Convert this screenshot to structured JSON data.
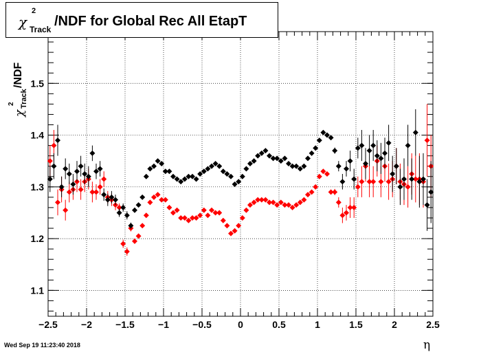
{
  "chart_data": {
    "type": "scatter",
    "title": {
      "chi": "χ",
      "sup": "2",
      "sub": "Track",
      "text": "/NDF for Global Rec All EtapT"
    },
    "ylabel": {
      "chi": "χ",
      "sup": "2",
      "sub": "Track",
      "text": "/NDF"
    },
    "xlabel": "η",
    "xlim": [
      -2.5,
      2.5
    ],
    "ylim": [
      1.05,
      1.6
    ],
    "xticks": [
      -2.5,
      -2,
      -1.5,
      -1,
      -0.5,
      0,
      0.5,
      1,
      1.5,
      2,
      2.5
    ],
    "xtick_labels": [
      "−2.5",
      "−2",
      "−1.5",
      "−1",
      "−0.5",
      "0",
      "0.5",
      "1",
      "1.5",
      "2",
      "2.5"
    ],
    "yticks": [
      1.1,
      1.2,
      1.3,
      1.4,
      1.5
    ],
    "ytick_labels": [
      "1.1",
      "1.2",
      "1.3",
      "1.4",
      "1.5"
    ],
    "grid": true,
    "series": [
      {
        "color": "#000000",
        "x": [
          -2.475,
          -2.425,
          -2.375,
          -2.325,
          -2.275,
          -2.225,
          -2.175,
          -2.125,
          -2.075,
          -2.025,
          -1.975,
          -1.925,
          -1.875,
          -1.825,
          -1.775,
          -1.725,
          -1.675,
          -1.625,
          -1.575,
          -1.525,
          -1.475,
          -1.425,
          -1.375,
          -1.325,
          -1.275,
          -1.225,
          -1.175,
          -1.125,
          -1.075,
          -1.025,
          -0.975,
          -0.925,
          -0.875,
          -0.825,
          -0.775,
          -0.725,
          -0.675,
          -0.625,
          -0.575,
          -0.525,
          -0.475,
          -0.425,
          -0.375,
          -0.325,
          -0.275,
          -0.225,
          -0.175,
          -0.125,
          -0.075,
          -0.025,
          0.025,
          0.075,
          0.125,
          0.175,
          0.225,
          0.275,
          0.325,
          0.375,
          0.425,
          0.475,
          0.525,
          0.575,
          0.625,
          0.675,
          0.725,
          0.775,
          0.825,
          0.875,
          0.925,
          0.975,
          1.025,
          1.075,
          1.125,
          1.175,
          1.225,
          1.275,
          1.325,
          1.375,
          1.425,
          1.475,
          1.525,
          1.575,
          1.625,
          1.675,
          1.725,
          1.775,
          1.825,
          1.875,
          1.925,
          1.975,
          2.025,
          2.075,
          2.125,
          2.175,
          2.225,
          2.275,
          2.325,
          2.375,
          2.425,
          2.475
        ],
        "y": [
          1.315,
          1.34,
          1.39,
          1.3,
          1.335,
          1.325,
          1.305,
          1.33,
          1.34,
          1.325,
          1.32,
          1.365,
          1.33,
          1.335,
          1.285,
          1.275,
          1.28,
          1.275,
          1.25,
          1.26,
          1.245,
          1.225,
          1.255,
          1.265,
          1.28,
          1.32,
          1.335,
          1.34,
          1.35,
          1.345,
          1.33,
          1.33,
          1.32,
          1.315,
          1.31,
          1.315,
          1.32,
          1.32,
          1.315,
          1.325,
          1.33,
          1.335,
          1.34,
          1.345,
          1.34,
          1.33,
          1.325,
          1.32,
          1.305,
          1.31,
          1.32,
          1.335,
          1.345,
          1.35,
          1.36,
          1.365,
          1.37,
          1.36,
          1.355,
          1.355,
          1.35,
          1.355,
          1.345,
          1.34,
          1.34,
          1.335,
          1.34,
          1.355,
          1.365,
          1.375,
          1.39,
          1.405,
          1.4,
          1.395,
          1.37,
          1.34,
          1.31,
          1.335,
          1.35,
          1.315,
          1.375,
          1.38,
          1.345,
          1.37,
          1.38,
          1.36,
          1.355,
          1.365,
          1.385,
          1.325,
          1.34,
          1.3,
          1.315,
          1.38,
          1.315,
          1.405,
          1.31,
          1.315,
          1.265,
          1.29
        ],
        "err": [
          0.025,
          0.025,
          0.03,
          0.02,
          0.02,
          0.02,
          0.02,
          0.02,
          0.02,
          0.02,
          0.02,
          0.015,
          0.015,
          0.015,
          0.012,
          0.012,
          0.012,
          0.01,
          0.008,
          0.008,
          0.008,
          0.006,
          0.005,
          0.004,
          0.003,
          0.003,
          0.003,
          0.003,
          0.003,
          0.003,
          0.003,
          0.003,
          0.003,
          0.003,
          0.003,
          0.003,
          0.003,
          0.003,
          0.003,
          0.003,
          0.003,
          0.003,
          0.003,
          0.003,
          0.003,
          0.003,
          0.003,
          0.003,
          0.003,
          0.003,
          0.003,
          0.003,
          0.003,
          0.003,
          0.003,
          0.003,
          0.003,
          0.003,
          0.003,
          0.003,
          0.003,
          0.003,
          0.003,
          0.003,
          0.003,
          0.003,
          0.003,
          0.003,
          0.003,
          0.003,
          0.003,
          0.003,
          0.003,
          0.003,
          0.006,
          0.01,
          0.015,
          0.015,
          0.02,
          0.02,
          0.02,
          0.03,
          0.03,
          0.03,
          0.03,
          0.03,
          0.03,
          0.03,
          0.035,
          0.035,
          0.035,
          0.035,
          0.04,
          0.04,
          0.04,
          0.045,
          0.05,
          0.05,
          0.05,
          0.06
        ]
      },
      {
        "color": "#ff0000",
        "x": [
          -2.475,
          -2.425,
          -2.375,
          -2.325,
          -2.275,
          -2.225,
          -2.175,
          -2.125,
          -2.075,
          -2.025,
          -1.975,
          -1.925,
          -1.875,
          -1.825,
          -1.775,
          -1.725,
          -1.675,
          -1.625,
          -1.575,
          -1.525,
          -1.475,
          -1.425,
          -1.375,
          -1.325,
          -1.275,
          -1.225,
          -1.175,
          -1.125,
          -1.075,
          -1.025,
          -0.975,
          -0.925,
          -0.875,
          -0.825,
          -0.775,
          -0.725,
          -0.675,
          -0.625,
          -0.575,
          -0.525,
          -0.475,
          -0.425,
          -0.375,
          -0.325,
          -0.275,
          -0.225,
          -0.175,
          -0.125,
          -0.075,
          -0.025,
          0.025,
          0.075,
          0.125,
          0.175,
          0.225,
          0.275,
          0.325,
          0.375,
          0.425,
          0.475,
          0.525,
          0.575,
          0.625,
          0.675,
          0.725,
          0.775,
          0.825,
          0.875,
          0.925,
          0.975,
          1.025,
          1.075,
          1.125,
          1.175,
          1.225,
          1.275,
          1.325,
          1.375,
          1.425,
          1.475,
          1.525,
          1.575,
          1.625,
          1.675,
          1.725,
          1.775,
          1.825,
          1.875,
          1.925,
          1.975,
          2.025,
          2.075,
          2.125,
          2.175,
          2.225,
          2.275,
          2.325,
          2.375,
          2.425,
          2.475
        ],
        "y": [
          1.35,
          1.38,
          1.27,
          1.295,
          1.255,
          1.29,
          1.295,
          1.31,
          1.295,
          1.31,
          1.315,
          1.29,
          1.29,
          1.3,
          1.315,
          1.28,
          1.275,
          1.265,
          1.26,
          1.19,
          1.175,
          1.22,
          1.195,
          1.205,
          1.225,
          1.245,
          1.27,
          1.28,
          1.285,
          1.275,
          1.275,
          1.26,
          1.25,
          1.255,
          1.24,
          1.24,
          1.235,
          1.24,
          1.24,
          1.245,
          1.255,
          1.245,
          1.255,
          1.25,
          1.25,
          1.235,
          1.225,
          1.21,
          1.215,
          1.225,
          1.24,
          1.255,
          1.265,
          1.27,
          1.275,
          1.275,
          1.275,
          1.27,
          1.27,
          1.265,
          1.27,
          1.265,
          1.265,
          1.26,
          1.265,
          1.27,
          1.275,
          1.285,
          1.29,
          1.3,
          1.32,
          1.33,
          1.325,
          1.29,
          1.29,
          1.27,
          1.245,
          1.25,
          1.26,
          1.26,
          1.3,
          1.31,
          1.34,
          1.31,
          1.31,
          1.35,
          1.31,
          1.34,
          1.31,
          1.315,
          1.34,
          1.31,
          1.305,
          1.3,
          1.325,
          1.315,
          1.315,
          1.31,
          1.39,
          1.34
        ],
        "err": [
          0.03,
          0.03,
          0.025,
          0.025,
          0.02,
          0.02,
          0.02,
          0.02,
          0.02,
          0.02,
          0.02,
          0.02,
          0.015,
          0.015,
          0.015,
          0.012,
          0.012,
          0.01,
          0.008,
          0.008,
          0.008,
          0.006,
          0.005,
          0.004,
          0.003,
          0.003,
          0.003,
          0.003,
          0.003,
          0.003,
          0.003,
          0.003,
          0.003,
          0.003,
          0.003,
          0.003,
          0.003,
          0.003,
          0.003,
          0.003,
          0.003,
          0.003,
          0.003,
          0.003,
          0.003,
          0.003,
          0.003,
          0.003,
          0.003,
          0.003,
          0.003,
          0.003,
          0.003,
          0.003,
          0.003,
          0.003,
          0.003,
          0.003,
          0.003,
          0.003,
          0.003,
          0.003,
          0.003,
          0.003,
          0.003,
          0.003,
          0.003,
          0.003,
          0.003,
          0.003,
          0.003,
          0.003,
          0.003,
          0.003,
          0.006,
          0.01,
          0.015,
          0.015,
          0.02,
          0.02,
          0.02,
          0.03,
          0.03,
          0.03,
          0.03,
          0.03,
          0.03,
          0.03,
          0.035,
          0.035,
          0.035,
          0.035,
          0.04,
          0.04,
          0.04,
          0.045,
          0.05,
          0.05,
          0.07,
          0.06
        ]
      }
    ]
  },
  "footer": {
    "timestamp": "Wed Sep 19 11:23:40 2018"
  }
}
